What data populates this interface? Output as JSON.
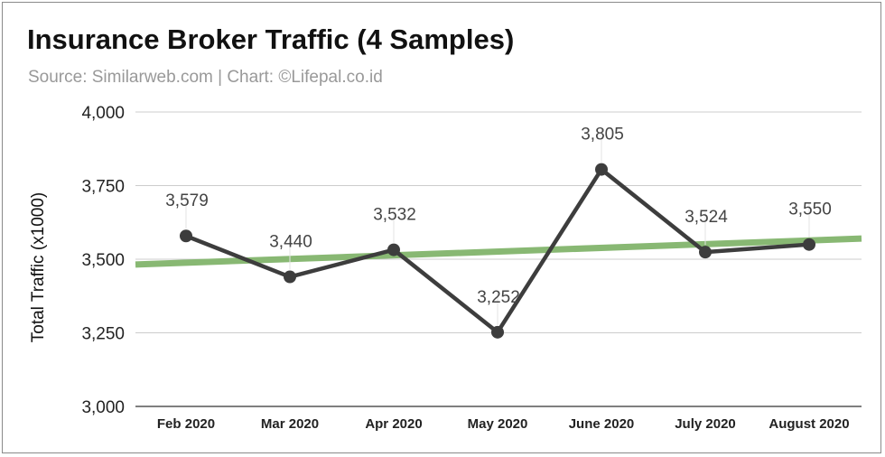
{
  "chart_data": {
    "type": "line",
    "title": "Insurance Broker Traffic (4 Samples)",
    "subtitle": "Source: Similarweb.com | Chart: ©Lifepal.co.id",
    "xlabel": "",
    "ylabel": "Total Traffic (x1000)",
    "categories": [
      "Feb 2020",
      "Mar 2020",
      "Apr 2020",
      "May 2020",
      "June 2020",
      "July 2020",
      "August 2020"
    ],
    "series": [
      {
        "values": [
          3579,
          3440,
          3532,
          3252,
          3805,
          3524,
          3550
        ],
        "data_labels": [
          "3,579",
          "3,440",
          "3,532",
          "3,252",
          "3,805",
          "3,524",
          "3,550"
        ],
        "color": "#3d3d3d"
      }
    ],
    "trendline": {
      "start": 3482,
      "end": 3570,
      "color": "#88b873"
    },
    "ylim": [
      3000,
      4000
    ],
    "yticks": [
      3000,
      3250,
      3500,
      3750,
      4000
    ],
    "ytick_labels": [
      "3,000",
      "3,250",
      "3,500",
      "3,750",
      "4,000"
    ],
    "grid": true,
    "legend": "none"
  }
}
